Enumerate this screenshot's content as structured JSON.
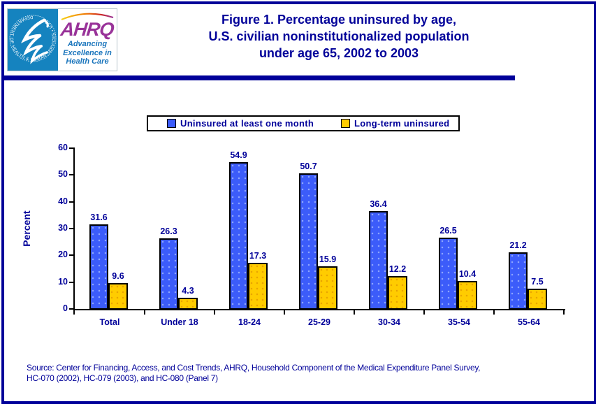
{
  "header": {
    "title_lines": [
      "Figure 1. Percentage uninsured by age,",
      "U.S. civilian noninstitutionalized population",
      "under age 65, 2002 to 2003"
    ],
    "logo": {
      "ahrq_text": "AHRQ",
      "tagline_lines": [
        "Advancing",
        "Excellence in",
        "Health Care"
      ],
      "hhs_ring_text": "DEPARTMENT OF HEALTH & HUMAN SERVICES • USA"
    }
  },
  "chart_data": {
    "type": "bar",
    "title": "Percentage uninsured by age, U.S. civilian noninstitutionalized population under age 65, 2002 to 2003",
    "categories": [
      "Total",
      "Under 18",
      "18-24",
      "25-29",
      "30-34",
      "35-54",
      "55-64"
    ],
    "series": [
      {
        "name": "Uninsured at least one month",
        "color": "#3c5cfa",
        "values": [
          31.6,
          26.3,
          54.9,
          50.7,
          36.4,
          26.5,
          21.2
        ]
      },
      {
        "name": "Long-term uninsured",
        "color": "#ffcc00",
        "values": [
          9.6,
          4.3,
          17.3,
          15.9,
          12.2,
          10.4,
          7.5
        ]
      }
    ],
    "xlabel": "",
    "ylabel": "Percent",
    "ylim": [
      0,
      60
    ],
    "yticks": [
      0,
      10,
      20,
      30,
      40,
      50,
      60
    ],
    "grid": false,
    "legend_position": "top"
  },
  "footer": {
    "source_lines": [
      "Source: Center for Financing, Access, and Cost Trends, AHRQ, Household Component of the Medical Expenditure Panel Survey,",
      "HC-070 (2002), HC-079 (2003), and HC-080 (Panel 7)"
    ]
  },
  "colors": {
    "accent_navy": "#000099",
    "bar_blue": "#3c5cfa",
    "bar_yellow": "#ffcc00",
    "hhs_blue": "#1583bf",
    "ahrq_purple": "#993399",
    "tagline_blue": "#1a75bc"
  }
}
